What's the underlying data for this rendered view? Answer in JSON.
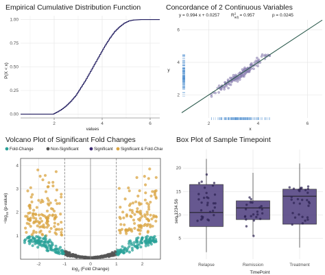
{
  "chart_data": [
    {
      "type": "line",
      "title": "Empirical Cumulative Distribution Function",
      "xlabel": "values",
      "ylabel": "P(X < x)",
      "xlim": [
        0.6,
        6.4
      ],
      "ylim": [
        -0.04,
        1.04
      ],
      "xticks": [
        "2",
        "4",
        "6"
      ],
      "yticks": [
        "0.00",
        "0.25",
        "0.50",
        "0.75",
        "1.00"
      ],
      "grid": true,
      "color": "#1f1a5e",
      "points": [
        [
          0.6,
          0
        ],
        [
          1.95,
          0
        ],
        [
          2.1,
          0.02
        ],
        [
          2.3,
          0.05
        ],
        [
          2.5,
          0.09
        ],
        [
          2.7,
          0.14
        ],
        [
          2.9,
          0.2
        ],
        [
          3.1,
          0.28
        ],
        [
          3.3,
          0.36
        ],
        [
          3.5,
          0.45
        ],
        [
          3.7,
          0.54
        ],
        [
          3.9,
          0.63
        ],
        [
          4.1,
          0.72
        ],
        [
          4.3,
          0.8
        ],
        [
          4.5,
          0.87
        ],
        [
          4.7,
          0.92
        ],
        [
          4.9,
          0.96
        ],
        [
          5.1,
          0.985
        ],
        [
          5.3,
          0.995
        ],
        [
          5.6,
          1.0
        ],
        [
          6.4,
          1.0
        ]
      ]
    },
    {
      "type": "scatter",
      "title": "Concordance of 2 Continuous Variables",
      "xlabel": "x",
      "ylabel": "y",
      "xlim": [
        0.9,
        6.6
      ],
      "ylim": [
        0.6,
        6.6
      ],
      "xticks": [
        "2",
        "4",
        "6"
      ],
      "yticks": [
        "2",
        "4",
        "6"
      ],
      "grid": true,
      "annotation_eq": "y = 0.994 x + 0.0257",
      "annotation_r2_label": "R",
      "annotation_r2_value": " = 0.957",
      "annotation_p": "p = 0.0245",
      "slope": 0.994,
      "intercept": 0.0257,
      "point_color": "#8a80b0",
      "line_color": "#2f5d50",
      "rug_color": "#4e8fd0"
    },
    {
      "type": "scatter",
      "title": "Volcano Plot of Significant Fold Changes",
      "xlabel": "log2 (Fold Change)",
      "ylabel": "-log10 (p-value)",
      "xlim": [
        -2.7,
        2.7
      ],
      "ylim": [
        0,
        4.3
      ],
      "xticks": [
        "-2",
        "-1",
        "0",
        "1",
        "2"
      ],
      "yticks": [
        "1",
        "2",
        "3",
        "4"
      ],
      "legend_position": "top",
      "fc_threshold": 1,
      "p_threshold": 1,
      "legend": [
        {
          "name": "Fold-Change",
          "color": "#2aa198"
        },
        {
          "name": "Non-Significant",
          "color": "#555555"
        },
        {
          "name": "Significant",
          "color": "#3d2b73"
        },
        {
          "name": "Significant & Fold-Change",
          "color": "#d9a441"
        }
      ]
    },
    {
      "type": "box",
      "title": "Box Plot of Sample Timepoint",
      "xlabel": "TimePoint",
      "ylabel": "seq.1234.56",
      "ylim": [
        0.5,
        24
      ],
      "yticks": [
        "5",
        "10",
        "15",
        "20"
      ],
      "box_color": "#4b3b7c",
      "categories": [
        "Relapse",
        "Remission",
        "Treatment"
      ],
      "boxes": [
        {
          "min": 2,
          "q1": 7.5,
          "median": 10.5,
          "q3": 16.5,
          "max": 22
        },
        {
          "min": 5.5,
          "q1": 9,
          "median": 11.5,
          "q3": 13,
          "max": 19
        },
        {
          "min": 3,
          "q1": 8,
          "median": 14,
          "q3": 15.5,
          "max": 21
        }
      ]
    }
  ]
}
